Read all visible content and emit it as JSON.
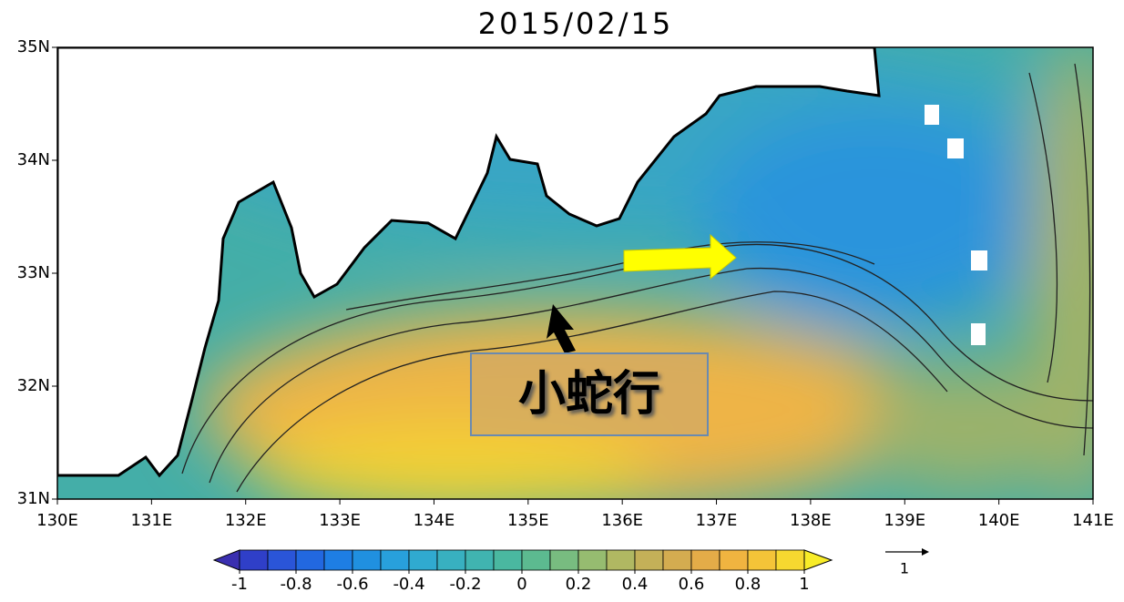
{
  "title": "2015/02/15",
  "map": {
    "lon_range": [
      130,
      141
    ],
    "lat_range": [
      31,
      35
    ],
    "lat_ticks": [
      {
        "value": 35,
        "label": "35N"
      },
      {
        "value": 34,
        "label": "34N"
      },
      {
        "value": 33,
        "label": "33N"
      },
      {
        "value": 32,
        "label": "32N"
      },
      {
        "value": 31,
        "label": "31N"
      }
    ],
    "lon_ticks": [
      {
        "value": 130,
        "label": "130E"
      },
      {
        "value": 131,
        "label": "131E"
      },
      {
        "value": 132,
        "label": "132E"
      },
      {
        "value": 133,
        "label": "133E"
      },
      {
        "value": 134,
        "label": "134E"
      },
      {
        "value": 135,
        "label": "135E"
      },
      {
        "value": 136,
        "label": "136E"
      },
      {
        "value": 137,
        "label": "137E"
      },
      {
        "value": 138,
        "label": "138E"
      },
      {
        "value": 139,
        "label": "139E"
      },
      {
        "value": 140,
        "label": "140E"
      },
      {
        "value": 141,
        "label": "141E"
      }
    ]
  },
  "colorbar": {
    "range": [
      -1,
      1
    ],
    "ticks": [
      -1,
      -0.8,
      -0.6,
      -0.4,
      -0.2,
      0,
      0.2,
      0.4,
      0.6,
      0.8,
      1
    ],
    "colors": [
      "#3a2fb0",
      "#2f3fc8",
      "#2a55d8",
      "#2268e0",
      "#1e7ee4",
      "#2090e0",
      "#28a0dc",
      "#30aad0",
      "#38b0c0",
      "#40b4b0",
      "#4ab8a0",
      "#5cba90",
      "#78bc80",
      "#96bc70",
      "#b0b862",
      "#c4b058",
      "#d4ac50",
      "#e4ac48",
      "#f0b440",
      "#f4c438",
      "#f6d830",
      "#f8ec28"
    ]
  },
  "reference_vector": {
    "label": "1"
  },
  "annotations": [
    "小蛇行"
  ]
}
